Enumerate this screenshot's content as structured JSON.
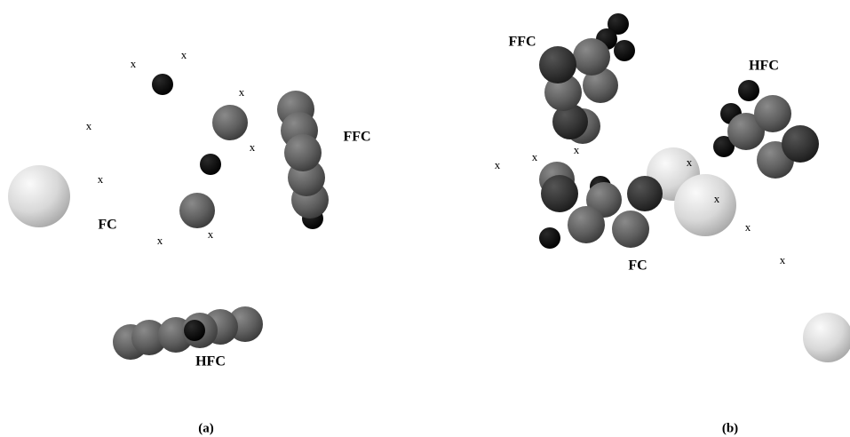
{
  "panels": [
    {
      "markers": [
        "x",
        "x",
        "x",
        "x",
        "x",
        "x",
        "x",
        "x"
      ],
      "labels": [
        "FC",
        "FFC",
        "HFC"
      ],
      "caption": "(a)"
    },
    {
      "markers": [
        "x",
        "x",
        "x",
        "x",
        "x",
        "x",
        "x"
      ],
      "labels": [
        "FFC",
        "HFC",
        "FC"
      ],
      "caption": "(b)"
    }
  ]
}
